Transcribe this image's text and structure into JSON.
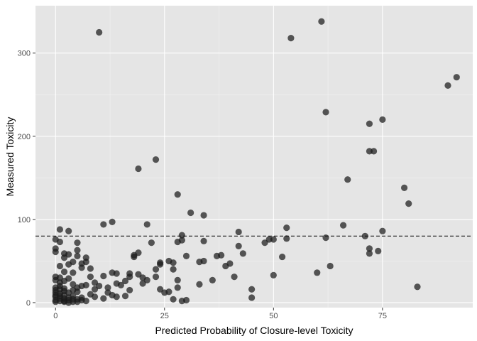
{
  "chart_data": {
    "type": "scatter",
    "xlabel": "Predicted Probability of Closure-level Toxicity",
    "ylabel": "Measured Toxicity",
    "xlim": [
      -4.6,
      95.7
    ],
    "ylim": [
      -6,
      357
    ],
    "x_ticks": [
      0,
      25,
      50,
      75
    ],
    "y_ticks": [
      0,
      100,
      200,
      300
    ],
    "x_tick_labels": [
      "0",
      "25",
      "50",
      "75"
    ],
    "y_tick_labels": [
      "0",
      "100",
      "200",
      "300"
    ],
    "grid": true,
    "threshold_line": {
      "axis": "y",
      "value": 80,
      "style": "dashed"
    },
    "colors": {
      "panel": "#e5e5e5",
      "grid_major": "#ffffff",
      "grid_minor": "#f2f2f2",
      "point": "#1a1a1a",
      "threshold": "#1a1a1a"
    },
    "points": [
      [
        10,
        325
      ],
      [
        54,
        318
      ],
      [
        61,
        338
      ],
      [
        90,
        261
      ],
      [
        92,
        271
      ],
      [
        62,
        229
      ],
      [
        75,
        220
      ],
      [
        72,
        215
      ],
      [
        72,
        182
      ],
      [
        73,
        182
      ],
      [
        67,
        148
      ],
      [
        80,
        138
      ],
      [
        81,
        119
      ],
      [
        19,
        161
      ],
      [
        23,
        172
      ],
      [
        28,
        130
      ],
      [
        31,
        108
      ],
      [
        34,
        105
      ],
      [
        21,
        94
      ],
      [
        11,
        94
      ],
      [
        13,
        97
      ],
      [
        42,
        85
      ],
      [
        53,
        90
      ],
      [
        53,
        77
      ],
      [
        49,
        76
      ],
      [
        50,
        76
      ],
      [
        48,
        72
      ],
      [
        42,
        68
      ],
      [
        43,
        59
      ],
      [
        40,
        47
      ],
      [
        39,
        44
      ],
      [
        37,
        56
      ],
      [
        38,
        57
      ],
      [
        34,
        74
      ],
      [
        34,
        50
      ],
      [
        30,
        56
      ],
      [
        28,
        73
      ],
      [
        29,
        75
      ],
      [
        29,
        81
      ],
      [
        22,
        72
      ],
      [
        19,
        60
      ],
      [
        18,
        55
      ],
      [
        18,
        57
      ],
      [
        30,
        3
      ],
      [
        33,
        49
      ],
      [
        27,
        48
      ],
      [
        27,
        40
      ],
      [
        26,
        13
      ],
      [
        24,
        46
      ],
      [
        24,
        48
      ],
      [
        23,
        40
      ],
      [
        23,
        31
      ],
      [
        20,
        23
      ],
      [
        20,
        30
      ],
      [
        21,
        27
      ],
      [
        19,
        34
      ],
      [
        17,
        31
      ],
      [
        17,
        35
      ],
      [
        14,
        35
      ],
      [
        13,
        36
      ],
      [
        16,
        26
      ],
      [
        15,
        21
      ],
      [
        14,
        23
      ],
      [
        12,
        18
      ],
      [
        11,
        32
      ],
      [
        13,
        9
      ],
      [
        14,
        7
      ],
      [
        12,
        12
      ],
      [
        11,
        5
      ],
      [
        9,
        24
      ],
      [
        9,
        16
      ],
      [
        10,
        20
      ],
      [
        8,
        41
      ],
      [
        8,
        31
      ],
      [
        7,
        49
      ],
      [
        7,
        54
      ],
      [
        6,
        47
      ],
      [
        6,
        42
      ],
      [
        5,
        56
      ],
      [
        5,
        72
      ],
      [
        5,
        63
      ],
      [
        4,
        49
      ],
      [
        2,
        54
      ],
      [
        1,
        73
      ],
      [
        1,
        88
      ],
      [
        3,
        86
      ],
      [
        0,
        76
      ],
      [
        0,
        61
      ],
      [
        0,
        65
      ],
      [
        2,
        59
      ],
      [
        3,
        58
      ],
      [
        3,
        46
      ],
      [
        1,
        44
      ],
      [
        2,
        37
      ],
      [
        4,
        36
      ],
      [
        2,
        26
      ],
      [
        1,
        20
      ],
      [
        0,
        31
      ],
      [
        0,
        27
      ],
      [
        1,
        30
      ],
      [
        3,
        29
      ],
      [
        4,
        15
      ],
      [
        5,
        13
      ],
      [
        6,
        20
      ],
      [
        7,
        21
      ],
      [
        8,
        10
      ],
      [
        9,
        7
      ],
      [
        6,
        3
      ],
      [
        5,
        1
      ],
      [
        4,
        4
      ],
      [
        3,
        6
      ],
      [
        2,
        9
      ],
      [
        1,
        11
      ],
      [
        0,
        15
      ],
      [
        0,
        3
      ],
      [
        0,
        1
      ],
      [
        1,
        2
      ],
      [
        2,
        1
      ],
      [
        0,
        7
      ],
      [
        1,
        5
      ],
      [
        2,
        2
      ],
      [
        3,
        0
      ],
      [
        4,
        8
      ],
      [
        5,
        4
      ],
      [
        6,
        6
      ],
      [
        7,
        2
      ],
      [
        0,
        18
      ],
      [
        1,
        16
      ],
      [
        2,
        14
      ],
      [
        3,
        12
      ],
      [
        4,
        22
      ],
      [
        5,
        18
      ],
      [
        1,
        24
      ],
      [
        0,
        9
      ],
      [
        2,
        5
      ],
      [
        3,
        3
      ],
      [
        4,
        1
      ],
      [
        0,
        12
      ],
      [
        1,
        8
      ],
      [
        2,
        17
      ],
      [
        41,
        31
      ],
      [
        45,
        16
      ],
      [
        45,
        6
      ],
      [
        50,
        33
      ],
      [
        52,
        55
      ],
      [
        60,
        36
      ],
      [
        63,
        44
      ],
      [
        66,
        93
      ],
      [
        71,
        80
      ],
      [
        72,
        65
      ],
      [
        72,
        59
      ],
      [
        74,
        62
      ],
      [
        75,
        86
      ],
      [
        83,
        19
      ],
      [
        62,
        78
      ],
      [
        28,
        27
      ],
      [
        27,
        4
      ],
      [
        25,
        12
      ],
      [
        28,
        18
      ],
      [
        33,
        22
      ],
      [
        36,
        27
      ],
      [
        24,
        16
      ],
      [
        17,
        15
      ],
      [
        16,
        8
      ],
      [
        26,
        50
      ],
      [
        29,
        2
      ]
    ]
  }
}
